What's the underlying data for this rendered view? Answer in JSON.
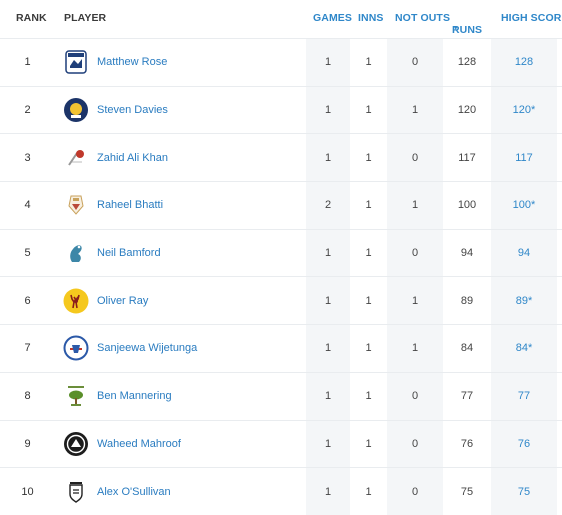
{
  "headers": {
    "rank": "RANK",
    "player": "PLAYER",
    "games": "GAMES",
    "inns": "INNS",
    "not_outs": "NOT OUTS",
    "runs": "RUNS",
    "runs_sort_icon": "▾",
    "high_score": "HIGH SCORE"
  },
  "rows": [
    {
      "rank": "1",
      "player": "Matthew Rose",
      "games": "1",
      "inns": "1",
      "not_outs": "0",
      "runs": "128",
      "high_score": "128",
      "logo": "club-crest-white-icon"
    },
    {
      "rank": "2",
      "player": "Steven Davies",
      "games": "1",
      "inns": "1",
      "not_outs": "1",
      "runs": "120",
      "high_score": "120*",
      "logo": "club-crest-navy-yellow-icon"
    },
    {
      "rank": "3",
      "player": "Zahid Ali Khan",
      "games": "1",
      "inns": "1",
      "not_outs": "0",
      "runs": "117",
      "high_score": "117",
      "logo": "club-crest-red-icon"
    },
    {
      "rank": "4",
      "player": "Raheel Bhatti",
      "games": "2",
      "inns": "1",
      "not_outs": "1",
      "runs": "100",
      "high_score": "100*",
      "logo": "club-crest-gold-icon"
    },
    {
      "rank": "5",
      "player": "Neil Bamford",
      "games": "1",
      "inns": "1",
      "not_outs": "0",
      "runs": "94",
      "high_score": "94",
      "logo": "club-crest-teal-icon"
    },
    {
      "rank": "6",
      "player": "Oliver Ray",
      "games": "1",
      "inns": "1",
      "not_outs": "1",
      "runs": "89",
      "high_score": "89*",
      "logo": "club-crest-yellow-stag-icon"
    },
    {
      "rank": "7",
      "player": "Sanjeewa Wijetunga",
      "games": "1",
      "inns": "1",
      "not_outs": "1",
      "runs": "84",
      "high_score": "84*",
      "logo": "club-crest-blue-red-icon"
    },
    {
      "rank": "8",
      "player": "Ben Mannering",
      "games": "1",
      "inns": "1",
      "not_outs": "0",
      "runs": "77",
      "high_score": "77",
      "logo": "club-crest-tree-icon"
    },
    {
      "rank": "9",
      "player": "Waheed Mahroof",
      "games": "1",
      "inns": "1",
      "not_outs": "0",
      "runs": "76",
      "high_score": "76",
      "logo": "club-crest-black-icon"
    },
    {
      "rank": "10",
      "player": "Alex O'Sullivan",
      "games": "1",
      "inns": "1",
      "not_outs": "0",
      "runs": "75",
      "high_score": "75",
      "logo": "club-crest-shield-icon"
    }
  ],
  "colors": {
    "accent_blue": "#2f87c9",
    "shaded_column": "#f4f6f8"
  }
}
